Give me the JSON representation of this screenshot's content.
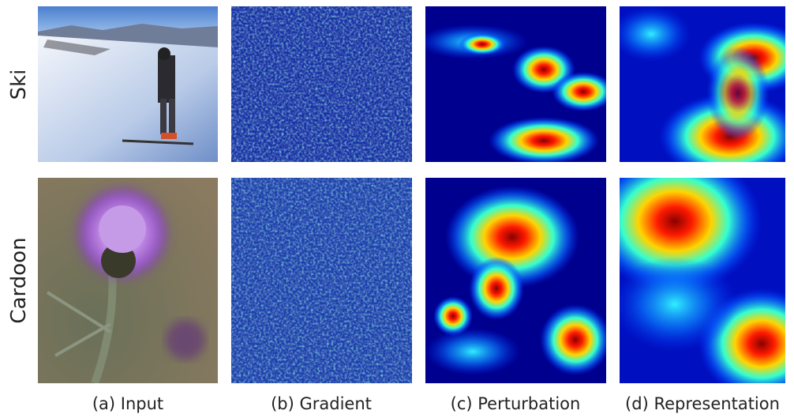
{
  "rows": [
    {
      "label": "Ski"
    },
    {
      "label": "Cardoon"
    }
  ],
  "columns": [
    {
      "caption": "(a) Input"
    },
    {
      "caption": "(b) Gradient"
    },
    {
      "caption": "(c) Perturbation"
    },
    {
      "caption": "(d) Representation"
    }
  ]
}
